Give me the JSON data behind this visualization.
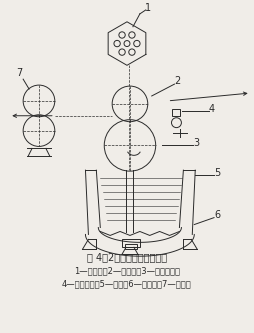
{
  "title": "图 4－2　松式绳洗机示意图",
  "caption_line1": "1—六角盘　2—上轧辊　3—主动下轧辊",
  "caption_line2": "4—进布瓷圈　5—轧槽　6—放水塞　7—小轧车",
  "bg_color": "#f0ede8",
  "line_color": "#2a2a2a",
  "label1": "1",
  "label2": "2",
  "label3": "3",
  "label4": "4",
  "label5": "5",
  "label6": "6",
  "label7": "7"
}
